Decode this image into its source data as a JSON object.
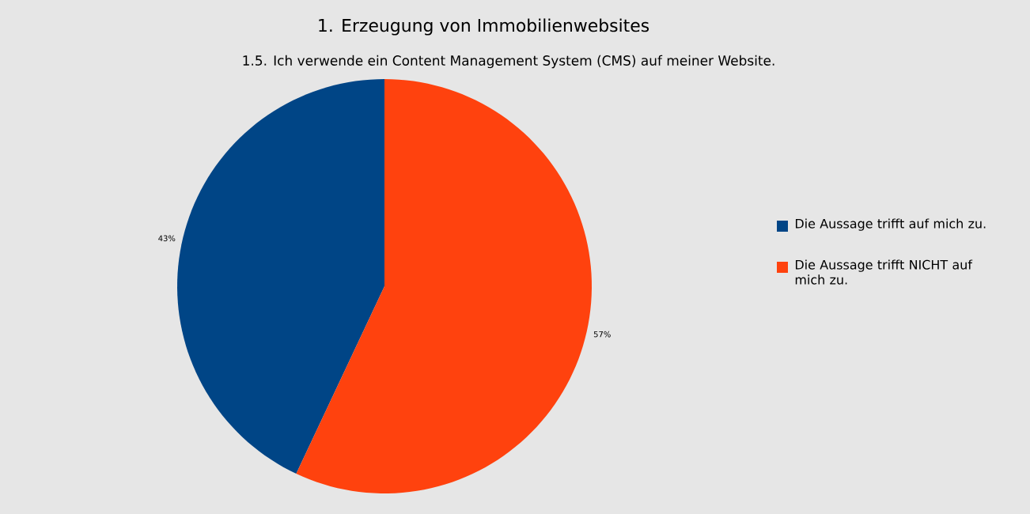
{
  "chart_data": {
    "type": "pie",
    "title": "1. Erzeugung von Immobilienwebsites",
    "subtitle": "1.5. Ich verwende ein Content Management System (CMS) auf meiner Website.",
    "categories": [
      "Die Aussage trifft auf mich zu.",
      "Die Aussage trifft NICHT auf mich zu."
    ],
    "values": [
      43,
      57
    ],
    "colors": [
      "#004586",
      "#ff420e"
    ],
    "value_labels": [
      "43%",
      "57%"
    ],
    "legend": "right"
  }
}
